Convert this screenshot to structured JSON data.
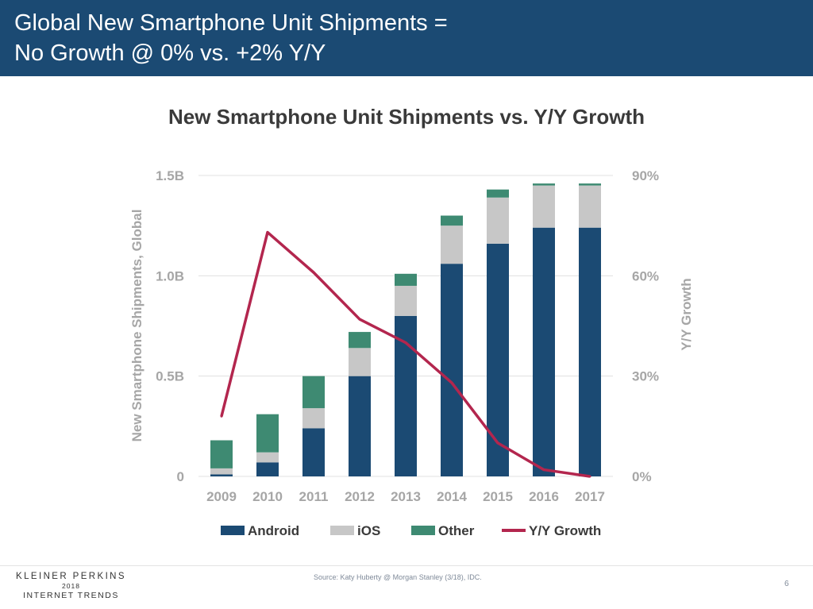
{
  "header": {
    "title_line1": "Global New Smartphone Unit Shipments =",
    "title_line2": "No Growth @ 0% vs. +2% Y/Y"
  },
  "footer": {
    "brand_line1": "KLEINER PERKINS",
    "brand_line2": "2018",
    "brand_line3": "INTERNET TRENDS",
    "source": "Source: Katy Huberty @ Morgan Stanley (3/18), IDC.",
    "page_number": "6"
  },
  "colors": {
    "android": "#1b4a73",
    "ios": "#c7c7c7",
    "other": "#3e8a72",
    "growth": "#b3264e",
    "axis_text": "#a6a6a6",
    "gridline": "#e0e0e0"
  },
  "chart_data": {
    "type": "bar",
    "stacked": true,
    "title": "New Smartphone Unit Shipments vs. Y/Y Growth",
    "ylabel": "New Smartphone Shipments, Global",
    "y2label": "Y/Y Growth",
    "ylim": [
      0,
      1.5
    ],
    "y2lim": [
      0,
      90
    ],
    "yticks": [
      "0",
      "0.5B",
      "1.0B",
      "1.5B"
    ],
    "y2ticks": [
      "0%",
      "30%",
      "60%",
      "90%"
    ],
    "categories": [
      "2009",
      "2010",
      "2011",
      "2012",
      "2013",
      "2014",
      "2015",
      "2016",
      "2017"
    ],
    "series": [
      {
        "name": "Android",
        "color": "#1b4a73",
        "values": [
          0.01,
          0.07,
          0.24,
          0.5,
          0.8,
          1.06,
          1.16,
          1.24,
          1.24
        ]
      },
      {
        "name": "iOS",
        "color": "#c7c7c7",
        "values": [
          0.03,
          0.05,
          0.1,
          0.14,
          0.15,
          0.19,
          0.23,
          0.21,
          0.21
        ]
      },
      {
        "name": "Other",
        "color": "#3e8a72",
        "values": [
          0.14,
          0.19,
          0.16,
          0.08,
          0.06,
          0.05,
          0.04,
          0.01,
          0.01
        ]
      }
    ],
    "line_series": {
      "name": "Y/Y Growth",
      "color": "#b3264e",
      "axis": "right",
      "values": [
        18,
        73,
        61,
        47,
        40,
        28,
        10,
        2,
        0
      ]
    },
    "grid": true,
    "legend": "bottom"
  }
}
